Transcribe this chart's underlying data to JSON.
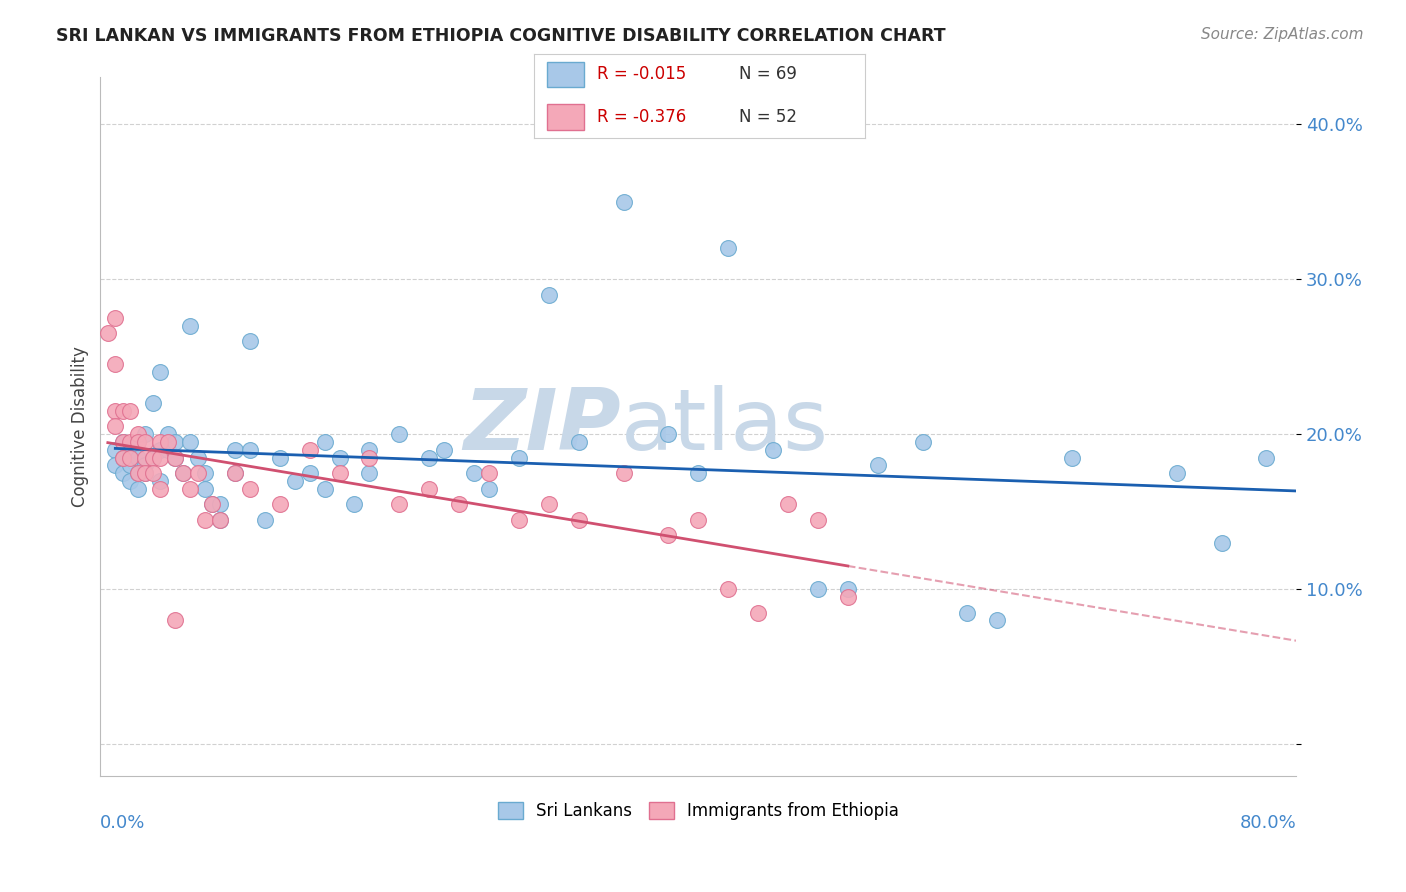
{
  "title": "SRI LANKAN VS IMMIGRANTS FROM ETHIOPIA COGNITIVE DISABILITY CORRELATION CHART",
  "source": "Source: ZipAtlas.com",
  "ylabel": "Cognitive Disability",
  "yticks": [
    0.0,
    0.1,
    0.2,
    0.3,
    0.4
  ],
  "ytick_labels": [
    "",
    "10.0%",
    "20.0%",
    "30.0%",
    "40.0%"
  ],
  "series1_label": "Sri Lankans",
  "series2_label": "Immigrants from Ethiopia",
  "series1_color": "#a8c8e8",
  "series2_color": "#f4a8b8",
  "series1_edge_color": "#6aaad0",
  "series2_edge_color": "#e07090",
  "trendline1_color": "#1a5fb0",
  "trendline2_color": "#d05070",
  "background_color": "#ffffff",
  "grid_color": "#cccccc",
  "watermark_zip": "ZIP",
  "watermark_atlas": "atlas",
  "watermark_color": "#c8d8e8",
  "axis_color": "#4488cc",
  "xlim": [
    0.0,
    0.8
  ],
  "ylim": [
    -0.02,
    0.43
  ],
  "legend_r1": "R = -0.015",
  "legend_n1": "N = 69",
  "legend_r2": "R = -0.376",
  "legend_n2": "N = 52",
  "sri_lankans_x": [
    0.01,
    0.01,
    0.015,
    0.015,
    0.015,
    0.02,
    0.02,
    0.02,
    0.025,
    0.025,
    0.025,
    0.03,
    0.03,
    0.03,
    0.035,
    0.035,
    0.04,
    0.04,
    0.04,
    0.045,
    0.045,
    0.05,
    0.05,
    0.055,
    0.06,
    0.06,
    0.065,
    0.07,
    0.07,
    0.075,
    0.08,
    0.08,
    0.09,
    0.09,
    0.1,
    0.1,
    0.11,
    0.12,
    0.13,
    0.14,
    0.15,
    0.15,
    0.16,
    0.17,
    0.18,
    0.18,
    0.2,
    0.22,
    0.23,
    0.25,
    0.26,
    0.28,
    0.3,
    0.32,
    0.35,
    0.38,
    0.4,
    0.42,
    0.45,
    0.48,
    0.5,
    0.52,
    0.55,
    0.58,
    0.6,
    0.65,
    0.72,
    0.75,
    0.78
  ],
  "sri_lankans_y": [
    0.19,
    0.18,
    0.195,
    0.185,
    0.175,
    0.19,
    0.18,
    0.17,
    0.185,
    0.175,
    0.165,
    0.18,
    0.2,
    0.175,
    0.22,
    0.185,
    0.24,
    0.19,
    0.17,
    0.2,
    0.19,
    0.195,
    0.185,
    0.175,
    0.27,
    0.195,
    0.185,
    0.175,
    0.165,
    0.155,
    0.155,
    0.145,
    0.19,
    0.175,
    0.26,
    0.19,
    0.145,
    0.185,
    0.17,
    0.175,
    0.195,
    0.165,
    0.185,
    0.155,
    0.19,
    0.175,
    0.2,
    0.185,
    0.19,
    0.175,
    0.165,
    0.185,
    0.29,
    0.195,
    0.35,
    0.2,
    0.175,
    0.32,
    0.19,
    0.1,
    0.1,
    0.18,
    0.195,
    0.085,
    0.08,
    0.185,
    0.175,
    0.13,
    0.185
  ],
  "ethiopians_x": [
    0.005,
    0.01,
    0.01,
    0.01,
    0.01,
    0.015,
    0.015,
    0.015,
    0.02,
    0.02,
    0.02,
    0.025,
    0.025,
    0.025,
    0.03,
    0.03,
    0.03,
    0.035,
    0.035,
    0.04,
    0.04,
    0.04,
    0.045,
    0.05,
    0.05,
    0.055,
    0.06,
    0.065,
    0.07,
    0.075,
    0.08,
    0.09,
    0.1,
    0.12,
    0.14,
    0.16,
    0.18,
    0.2,
    0.22,
    0.24,
    0.26,
    0.28,
    0.3,
    0.32,
    0.35,
    0.38,
    0.4,
    0.42,
    0.44,
    0.46,
    0.48,
    0.5
  ],
  "ethiopians_y": [
    0.265,
    0.275,
    0.245,
    0.215,
    0.205,
    0.215,
    0.195,
    0.185,
    0.215,
    0.195,
    0.185,
    0.2,
    0.195,
    0.175,
    0.195,
    0.185,
    0.175,
    0.185,
    0.175,
    0.195,
    0.185,
    0.165,
    0.195,
    0.185,
    0.08,
    0.175,
    0.165,
    0.175,
    0.145,
    0.155,
    0.145,
    0.175,
    0.165,
    0.155,
    0.19,
    0.175,
    0.185,
    0.155,
    0.165,
    0.155,
    0.175,
    0.145,
    0.155,
    0.145,
    0.175,
    0.135,
    0.145,
    0.1,
    0.085,
    0.155,
    0.145,
    0.095
  ]
}
